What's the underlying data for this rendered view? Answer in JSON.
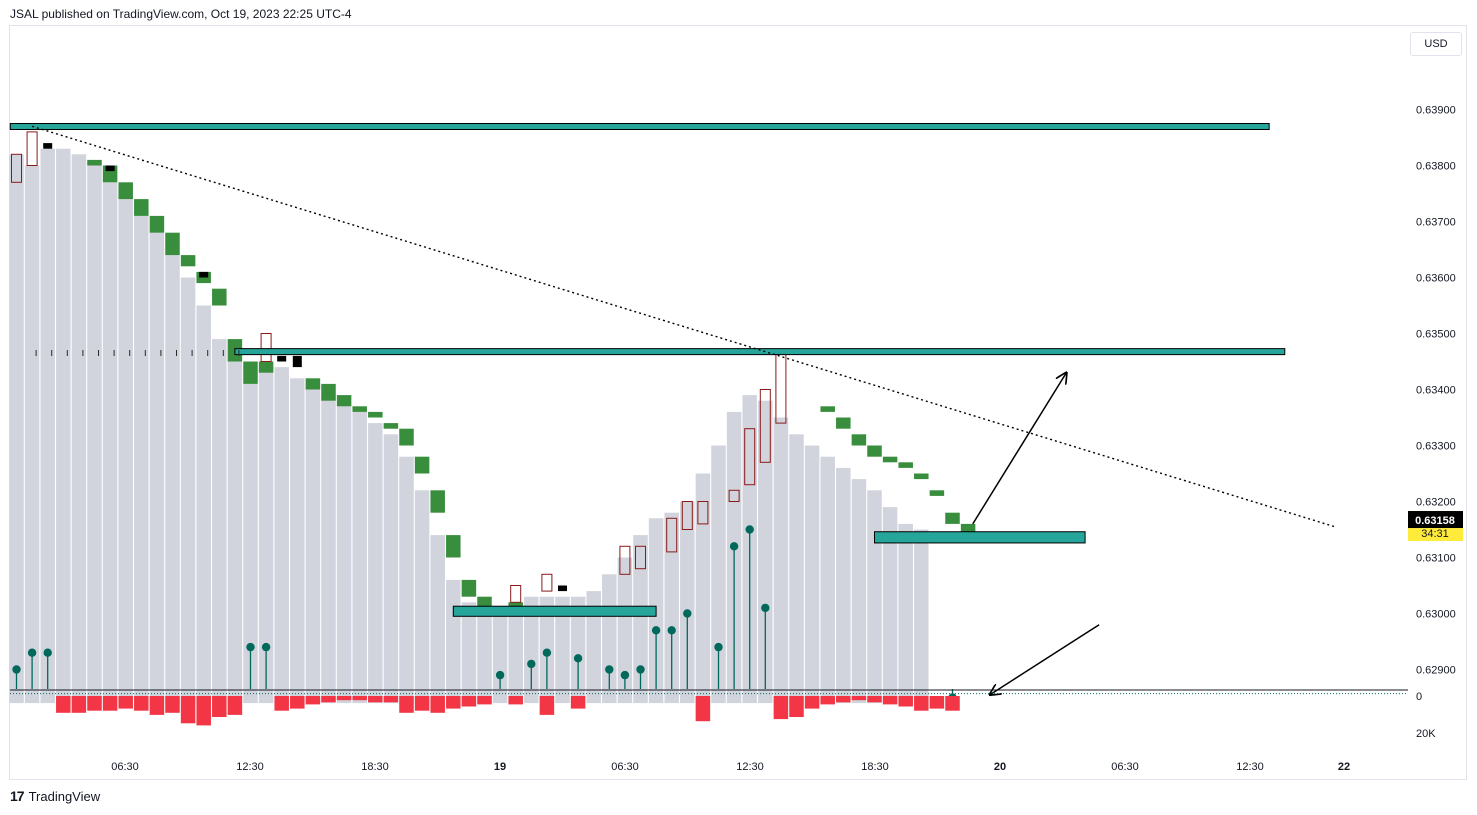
{
  "header": {
    "published": "JSAL published on TradingView.com, Oct 19, 2023 22:25 UTC-4"
  },
  "currency_label": "USD",
  "footer": {
    "brand": "TradingView",
    "logo_icon": "tradingview-logo-icon"
  },
  "colors": {
    "column": "#d1d4dc",
    "cap_green": "#388e3c",
    "cap_black": "#000000",
    "wick_outline": "#8b1a1a",
    "zone_fill": "#26a69a",
    "zone_border": "#000000",
    "volume": "#f23645",
    "lollipop": "#00695c",
    "price_badge_bg": "#000000",
    "price_badge_text": "#ffffff",
    "countdown_bg": "#ffeb3b"
  },
  "chart_data": {
    "type": "bar",
    "price_axis": {
      "ticks": [
        "0.63900",
        "0.63800",
        "0.63700",
        "0.63600",
        "0.63500",
        "0.63400",
        "0.63300",
        "0.63200",
        "0.63100",
        "0.63000",
        "0.62900"
      ],
      "ylim": [
        0.6284,
        0.6394
      ],
      "current_price": "0.63158",
      "countdown": "34:31"
    },
    "volume_axis": {
      "ticks": [
        "0",
        "20K"
      ]
    },
    "time_axis": {
      "ticks": [
        "06:30",
        "12:30",
        "18:30",
        "19",
        "06:30",
        "12:30",
        "18:30",
        "20",
        "06:30",
        "12:30",
        "22"
      ]
    },
    "columns": {
      "top": [
        0.6382,
        0.638,
        0.6383,
        0.6383,
        0.6382,
        0.638,
        0.6377,
        0.6374,
        0.6371,
        0.6368,
        0.6364,
        0.636,
        0.6355,
        0.6349,
        0.6345,
        0.6341,
        0.6344,
        0.6344,
        0.6342,
        0.6341,
        0.6339,
        0.6337,
        0.6336,
        0.6334,
        0.6332,
        0.6328,
        0.6322,
        0.6314,
        0.6306,
        0.6302,
        0.6301,
        0.6301,
        0.6302,
        0.6303,
        0.6303,
        0.6303,
        0.6303,
        0.6304,
        0.6307,
        0.631,
        0.6314,
        0.6317,
        0.6318,
        0.632,
        0.6325,
        0.633,
        0.6336,
        0.6339,
        0.6338,
        0.6335,
        0.6332,
        0.633,
        0.6328,
        0.6326,
        0.6324,
        0.6322,
        0.6319,
        0.6316,
        0.6315
      ],
      "bottom": 0.6284
    },
    "caps": [
      {
        "i": 5,
        "top": 0.6381,
        "bottom": 0.638,
        "color": "green"
      },
      {
        "i": 6,
        "top": 0.638,
        "bottom": 0.6377,
        "color": "green"
      },
      {
        "i": 7,
        "top": 0.6377,
        "bottom": 0.6374,
        "color": "green"
      },
      {
        "i": 8,
        "top": 0.6374,
        "bottom": 0.6371,
        "color": "green"
      },
      {
        "i": 9,
        "top": 0.6371,
        "bottom": 0.6368,
        "color": "green"
      },
      {
        "i": 10,
        "top": 0.6368,
        "bottom": 0.6364,
        "color": "green"
      },
      {
        "i": 11,
        "top": 0.6364,
        "bottom": 0.6362,
        "color": "green"
      },
      {
        "i": 12,
        "top": 0.6361,
        "bottom": 0.6359,
        "color": "green"
      },
      {
        "i": 13,
        "top": 0.6358,
        "bottom": 0.6355,
        "color": "green"
      },
      {
        "i": 14,
        "top": 0.6349,
        "bottom": 0.6345,
        "color": "green"
      },
      {
        "i": 15,
        "top": 0.6345,
        "bottom": 0.6341,
        "color": "green"
      },
      {
        "i": 16,
        "top": 0.6345,
        "bottom": 0.6343,
        "color": "green"
      },
      {
        "i": 19,
        "top": 0.6342,
        "bottom": 0.634,
        "color": "green"
      },
      {
        "i": 20,
        "top": 0.6341,
        "bottom": 0.6338,
        "color": "green"
      },
      {
        "i": 21,
        "top": 0.6339,
        "bottom": 0.6337,
        "color": "green"
      },
      {
        "i": 22,
        "top": 0.6337,
        "bottom": 0.6336,
        "color": "green"
      },
      {
        "i": 23,
        "top": 0.6336,
        "bottom": 0.6335,
        "color": "green"
      },
      {
        "i": 24,
        "top": 0.6334,
        "bottom": 0.6333,
        "color": "green"
      },
      {
        "i": 25,
        "top": 0.6333,
        "bottom": 0.633,
        "color": "green"
      },
      {
        "i": 26,
        "top": 0.6328,
        "bottom": 0.6325,
        "color": "green"
      },
      {
        "i": 27,
        "top": 0.6322,
        "bottom": 0.6318,
        "color": "green"
      },
      {
        "i": 28,
        "top": 0.6314,
        "bottom": 0.631,
        "color": "green"
      },
      {
        "i": 29,
        "top": 0.6306,
        "bottom": 0.6303,
        "color": "green"
      },
      {
        "i": 30,
        "top": 0.6303,
        "bottom": 0.6301,
        "color": "green"
      },
      {
        "i": 32,
        "top": 0.6302,
        "bottom": 0.6301,
        "color": "green"
      },
      {
        "i": 52,
        "top": 0.6337,
        "bottom": 0.6336,
        "color": "green"
      },
      {
        "i": 53,
        "top": 0.6335,
        "bottom": 0.6333,
        "color": "green"
      },
      {
        "i": 54,
        "top": 0.6332,
        "bottom": 0.633,
        "color": "green"
      },
      {
        "i": 55,
        "top": 0.633,
        "bottom": 0.6328,
        "color": "green"
      },
      {
        "i": 56,
        "top": 0.6328,
        "bottom": 0.6327,
        "color": "green"
      },
      {
        "i": 57,
        "top": 0.6327,
        "bottom": 0.6326,
        "color": "green"
      },
      {
        "i": 58,
        "top": 0.6325,
        "bottom": 0.6324,
        "color": "green"
      },
      {
        "i": 59,
        "top": 0.6322,
        "bottom": 0.6321,
        "color": "green"
      },
      {
        "i": 60,
        "top": 0.6318,
        "bottom": 0.6316,
        "color": "green"
      },
      {
        "i": 61,
        "top": 0.6316,
        "bottom": 0.6314,
        "color": "green"
      },
      {
        "i": 2,
        "top": 0.6384,
        "bottom": 0.6383,
        "color": "black"
      },
      {
        "i": 6,
        "top": 0.638,
        "bottom": 0.6379,
        "color": "black"
      },
      {
        "i": 12,
        "top": 0.6361,
        "bottom": 0.636,
        "color": "black"
      },
      {
        "i": 17,
        "top": 0.6346,
        "bottom": 0.6345,
        "color": "black"
      },
      {
        "i": 18,
        "top": 0.6346,
        "bottom": 0.6344,
        "color": "black"
      },
      {
        "i": 35,
        "top": 0.6305,
        "bottom": 0.6304,
        "color": "black"
      }
    ],
    "wicks": [
      {
        "i": 0,
        "top": 0.6382,
        "bottom": 0.6377
      },
      {
        "i": 1,
        "top": 0.6386,
        "bottom": 0.638
      },
      {
        "i": 16,
        "top": 0.635,
        "bottom": 0.6345
      },
      {
        "i": 32,
        "top": 0.6305,
        "bottom": 0.6302
      },
      {
        "i": 34,
        "top": 0.6307,
        "bottom": 0.6304
      },
      {
        "i": 39,
        "top": 0.6312,
        "bottom": 0.6307
      },
      {
        "i": 40,
        "top": 0.6312,
        "bottom": 0.6308
      },
      {
        "i": 42,
        "top": 0.6317,
        "bottom": 0.6311
      },
      {
        "i": 43,
        "top": 0.632,
        "bottom": 0.6315
      },
      {
        "i": 44,
        "top": 0.632,
        "bottom": 0.6316
      },
      {
        "i": 46,
        "top": 0.6322,
        "bottom": 0.632
      },
      {
        "i": 47,
        "top": 0.6333,
        "bottom": 0.6323
      },
      {
        "i": 48,
        "top": 0.634,
        "bottom": 0.6327
      },
      {
        "i": 49,
        "top": 0.6347,
        "bottom": 0.6334
      }
    ],
    "lollipops": [
      {
        "i": 0,
        "value": 0.629
      },
      {
        "i": 1,
        "value": 0.6293
      },
      {
        "i": 2,
        "value": 0.6293
      },
      {
        "i": 15,
        "value": 0.6294
      },
      {
        "i": 16,
        "value": 0.6294
      },
      {
        "i": 31,
        "value": 0.6289
      },
      {
        "i": 33,
        "value": 0.6291
      },
      {
        "i": 34,
        "value": 0.6293
      },
      {
        "i": 36,
        "value": 0.6292
      },
      {
        "i": 38,
        "value": 0.629
      },
      {
        "i": 39,
        "value": 0.6289
      },
      {
        "i": 40,
        "value": 0.629
      },
      {
        "i": 41,
        "value": 0.6297
      },
      {
        "i": 42,
        "value": 0.6297
      },
      {
        "i": 43,
        "value": 0.63
      },
      {
        "i": 45,
        "value": 0.6294
      },
      {
        "i": 46,
        "value": 0.6312
      },
      {
        "i": 47,
        "value": 0.6315
      },
      {
        "i": 48,
        "value": 0.6301
      },
      {
        "i": 60,
        "value": 0.6285
      }
    ],
    "volume": [
      {
        "i": 3,
        "v": 8
      },
      {
        "i": 4,
        "v": 8
      },
      {
        "i": 5,
        "v": 7
      },
      {
        "i": 6,
        "v": 7
      },
      {
        "i": 7,
        "v": 6
      },
      {
        "i": 8,
        "v": 7
      },
      {
        "i": 9,
        "v": 9
      },
      {
        "i": 10,
        "v": 8
      },
      {
        "i": 11,
        "v": 13
      },
      {
        "i": 12,
        "v": 14
      },
      {
        "i": 13,
        "v": 10
      },
      {
        "i": 14,
        "v": 9
      },
      {
        "i": 17,
        "v": 7
      },
      {
        "i": 18,
        "v": 6
      },
      {
        "i": 19,
        "v": 4
      },
      {
        "i": 20,
        "v": 3
      },
      {
        "i": 21,
        "v": 2
      },
      {
        "i": 22,
        "v": 2
      },
      {
        "i": 23,
        "v": 3
      },
      {
        "i": 24,
        "v": 3
      },
      {
        "i": 25,
        "v": 8
      },
      {
        "i": 26,
        "v": 7
      },
      {
        "i": 27,
        "v": 8
      },
      {
        "i": 28,
        "v": 6
      },
      {
        "i": 29,
        "v": 5
      },
      {
        "i": 30,
        "v": 4
      },
      {
        "i": 32,
        "v": 4
      },
      {
        "i": 34,
        "v": 9
      },
      {
        "i": 36,
        "v": 6
      },
      {
        "i": 44,
        "v": 12
      },
      {
        "i": 49,
        "v": 11
      },
      {
        "i": 50,
        "v": 10
      },
      {
        "i": 51,
        "v": 6
      },
      {
        "i": 52,
        "v": 4
      },
      {
        "i": 53,
        "v": 3
      },
      {
        "i": 54,
        "v": 2
      },
      {
        "i": 55,
        "v": 3
      },
      {
        "i": 56,
        "v": 4
      },
      {
        "i": 57,
        "v": 5
      },
      {
        "i": 58,
        "v": 7
      },
      {
        "i": 59,
        "v": 6
      },
      {
        "i": 60,
        "v": 7
      }
    ],
    "zones": [
      {
        "name": "resistance-top",
        "price_top": 0.63875,
        "price_bottom": 0.63865,
        "x_from": -0.4,
        "x_to": 80.3
      },
      {
        "name": "resistance-mid",
        "price_top": 0.63473,
        "price_bottom": 0.63463,
        "x_from": 14,
        "x_to": 81.3
      },
      {
        "name": "support-low",
        "price_top": 0.63013,
        "price_bottom": 0.62995,
        "x_from": 28,
        "x_to": 41
      },
      {
        "name": "support-right",
        "price_top": 0.63146,
        "price_bottom": 0.63126,
        "x_from": 55,
        "x_to": 68.5
      }
    ],
    "trendline": {
      "from": {
        "x": 1,
        "price": 0.6387
      },
      "to": {
        "x": 84.5,
        "price": 0.63155
      }
    },
    "dotted_level": 0.62857,
    "arrows": [
      {
        "from": {
          "x": 61.3,
          "price": 0.6316
        },
        "to": {
          "x": 67.3,
          "price": 0.6343
        }
      },
      {
        "from": {
          "x": 69.4,
          "price": 0.6298
        },
        "to": {
          "x": 62.4,
          "price": 0.62855
        }
      }
    ]
  }
}
